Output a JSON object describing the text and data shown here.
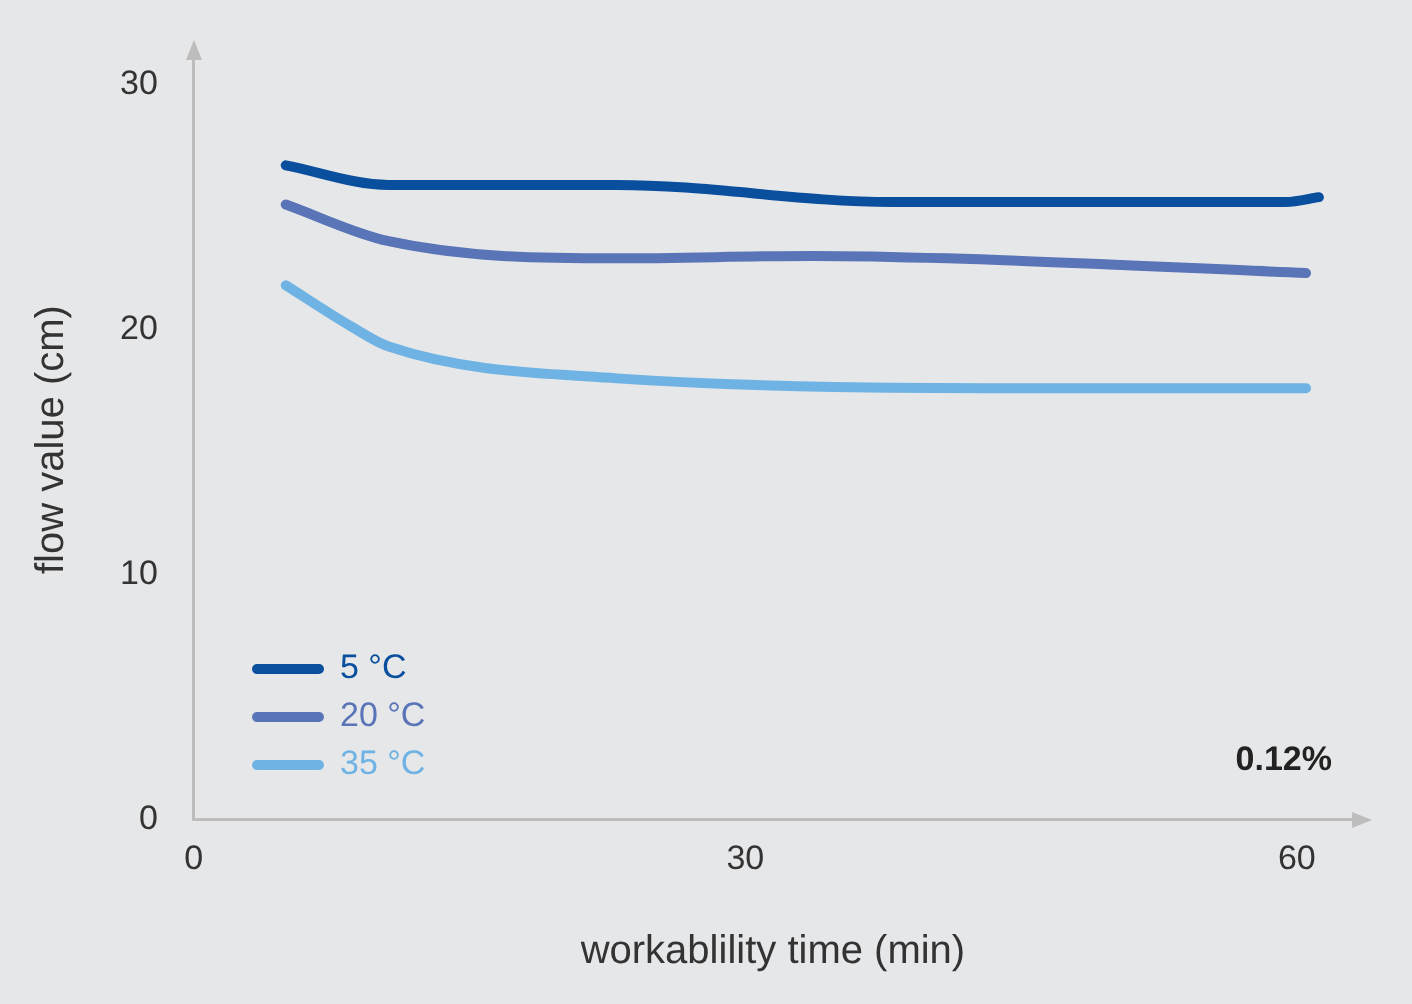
{
  "chart_data": {
    "type": "line",
    "xlabel": "workablility time (min)",
    "ylabel": "flow value (cm)",
    "xlim": [
      0,
      63
    ],
    "xticks": [
      0,
      30,
      60
    ],
    "ylim": [
      0,
      31
    ],
    "yticks": [
      0,
      10,
      20,
      30
    ],
    "grid": false,
    "legend": "bottom left",
    "marker": "none",
    "line_style": "solid",
    "annotations": [
      "0.12%"
    ],
    "series": [
      {
        "name": "5 °C",
        "color": "#0a4f9e",
        "x": [
          5,
          10.6,
          23,
          38,
          59.4,
          61.2
        ],
        "values": [
          26.7,
          25.9,
          25.9,
          25.2,
          25.2,
          25.4
        ]
      },
      {
        "name": "20 °C",
        "color": "#5a74b8",
        "x": [
          5,
          10.6,
          23,
          33.7,
          41,
          60.5
        ],
        "values": [
          25.1,
          23.6,
          22.9,
          23.0,
          22.9,
          22.3
        ]
      },
      {
        "name": "35 °C",
        "color": "#6fb3e4",
        "x": [
          5,
          8.6,
          10.6,
          23,
          46.6,
          60.5
        ],
        "values": [
          21.8,
          20.1,
          19.3,
          18.0,
          17.6,
          17.6
        ]
      }
    ]
  }
}
